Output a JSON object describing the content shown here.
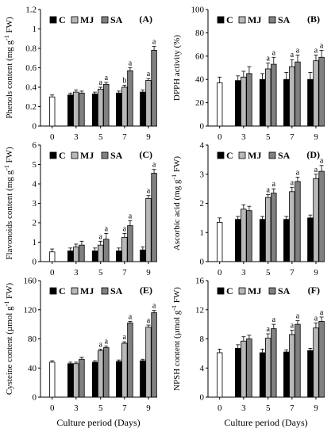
{
  "figure": {
    "xlabel": "Culture period (Days)"
  },
  "chart_data": [
    {
      "type": "bar",
      "panel": "(A)",
      "ylabel": "Phenols content (mg g⁻¹ FW)",
      "ylim": [
        0,
        1.2
      ],
      "yticks": [
        "0",
        "0.2",
        "0.4",
        "0.6",
        "0.8",
        "1",
        "1.2"
      ],
      "categories": [
        "0",
        "3",
        "5",
        "7",
        "9"
      ],
      "day0": {
        "value": 0.3,
        "err": 0.02
      },
      "series": [
        {
          "name": "C",
          "values": [
            null,
            0.32,
            0.33,
            0.34,
            0.35
          ],
          "errors": [
            null,
            0.02,
            0.02,
            0.02,
            0.02
          ],
          "labels": [
            "",
            "",
            "",
            "",
            ""
          ]
        },
        {
          "name": "MJ",
          "values": [
            null,
            0.35,
            0.38,
            0.4,
            0.47
          ],
          "errors": [
            null,
            0.02,
            0.02,
            0.02,
            0.02
          ],
          "labels": [
            "",
            "",
            "a",
            "b",
            "a"
          ]
        },
        {
          "name": "SA",
          "values": [
            null,
            0.34,
            0.43,
            0.57,
            0.78
          ],
          "errors": [
            null,
            0.02,
            0.02,
            0.03,
            0.04
          ],
          "labels": [
            "",
            "",
            "a",
            "a",
            "a"
          ]
        }
      ]
    },
    {
      "type": "bar",
      "panel": "(B)",
      "ylabel": "DPPH activity (%)",
      "ylim": [
        0,
        100
      ],
      "yticks": [
        "0",
        "20",
        "40",
        "60",
        "80",
        "100"
      ],
      "categories": [
        "0",
        "3",
        "5",
        "7",
        "9"
      ],
      "day0": {
        "value": 37,
        "err": 5
      },
      "series": [
        {
          "name": "C",
          "values": [
            null,
            39,
            40,
            40,
            40
          ],
          "errors": [
            null,
            4,
            5,
            6,
            6
          ],
          "labels": [
            "",
            "",
            "",
            "",
            ""
          ]
        },
        {
          "name": "MJ",
          "values": [
            null,
            42,
            49,
            51,
            56
          ],
          "errors": [
            null,
            5,
            5,
            6,
            5
          ],
          "labels": [
            "",
            "",
            "a",
            "a",
            "a"
          ]
        },
        {
          "name": "SA",
          "values": [
            null,
            45,
            53,
            55,
            59
          ],
          "errors": [
            null,
            6,
            6,
            6,
            6
          ],
          "labels": [
            "",
            "",
            "a",
            "a",
            "a"
          ]
        }
      ]
    },
    {
      "type": "bar",
      "panel": "(C)",
      "ylabel": "Flavonoids content (mg g⁻¹ FW)",
      "ylim": [
        0,
        6
      ],
      "yticks": [
        "0",
        "1",
        "2",
        "3",
        "4",
        "5",
        "6"
      ],
      "categories": [
        "0",
        "3",
        "5",
        "7",
        "9"
      ],
      "day0": {
        "value": 0.5,
        "err": 0.15
      },
      "series": [
        {
          "name": "C",
          "values": [
            null,
            0.55,
            0.55,
            0.55,
            0.6
          ],
          "errors": [
            null,
            0.15,
            0.15,
            0.15,
            0.15
          ],
          "labels": [
            "",
            "",
            "",
            "",
            ""
          ]
        },
        {
          "name": "MJ",
          "values": [
            null,
            0.75,
            0.85,
            1.25,
            3.25
          ],
          "errors": [
            null,
            0.15,
            0.2,
            0.2,
            0.15
          ],
          "labels": [
            "",
            "",
            "a",
            "a",
            "a"
          ]
        },
        {
          "name": "SA",
          "values": [
            null,
            0.85,
            1.15,
            1.85,
            4.55
          ],
          "errors": [
            null,
            0.2,
            0.3,
            0.25,
            0.2
          ],
          "labels": [
            "",
            "",
            "a",
            "a",
            "a"
          ]
        }
      ]
    },
    {
      "type": "bar",
      "panel": "(D)",
      "ylabel": "Ascorbic acid (mg g⁻¹ FW)",
      "ylim": [
        0,
        4
      ],
      "yticks": [
        "0",
        "1",
        "2",
        "3",
        "4"
      ],
      "categories": [
        "0",
        "3",
        "5",
        "7",
        "9"
      ],
      "day0": {
        "value": 1.35,
        "err": 0.15
      },
      "series": [
        {
          "name": "C",
          "values": [
            null,
            1.45,
            1.45,
            1.45,
            1.5
          ],
          "errors": [
            null,
            0.1,
            0.1,
            0.1,
            0.1
          ],
          "labels": [
            "",
            "",
            "",
            "",
            ""
          ]
        },
        {
          "name": "MJ",
          "values": [
            null,
            1.8,
            2.2,
            2.4,
            2.85
          ],
          "errors": [
            null,
            0.15,
            0.1,
            0.15,
            0.15
          ],
          "labels": [
            "",
            "",
            "a",
            "a",
            "a"
          ]
        },
        {
          "name": "SA",
          "values": [
            null,
            1.75,
            2.35,
            2.75,
            3.1
          ],
          "errors": [
            null,
            0.15,
            0.15,
            0.15,
            0.2
          ],
          "labels": [
            "",
            "",
            "a",
            "a",
            "a"
          ]
        }
      ]
    },
    {
      "type": "bar",
      "panel": "(E)",
      "ylabel": "Cysteine content (µmol g⁻¹ FW)",
      "ylim": [
        0,
        160
      ],
      "yticks": [
        "0",
        "40",
        "80",
        "120",
        "160"
      ],
      "categories": [
        "0",
        "3",
        "5",
        "7",
        "9"
      ],
      "day0": {
        "value": 48,
        "err": 2
      },
      "series": [
        {
          "name": "C",
          "values": [
            null,
            46,
            48,
            49,
            50
          ],
          "errors": [
            null,
            2,
            2,
            2,
            2
          ],
          "labels": [
            "",
            "",
            "",
            "",
            ""
          ]
        },
        {
          "name": "MJ",
          "values": [
            null,
            46,
            64,
            74,
            96
          ],
          "errors": [
            null,
            2,
            2,
            2,
            3
          ],
          "labels": [
            "",
            "",
            "a",
            "a",
            "a"
          ]
        },
        {
          "name": "SA",
          "values": [
            null,
            52,
            68,
            102,
            116
          ],
          "errors": [
            null,
            3,
            2,
            2,
            3
          ],
          "labels": [
            "",
            "",
            "a",
            "a",
            "a"
          ]
        }
      ]
    },
    {
      "type": "bar",
      "panel": "(F)",
      "ylabel": "NPSH content (µmol g⁻¹ FW)",
      "ylim": [
        0,
        16
      ],
      "yticks": [
        "0",
        "4",
        "8",
        "12",
        "16"
      ],
      "categories": [
        "0",
        "3",
        "5",
        "7",
        "9"
      ],
      "day0": {
        "value": 6.1,
        "err": 0.5
      },
      "series": [
        {
          "name": "C",
          "values": [
            null,
            6.7,
            6.1,
            6.2,
            6.4
          ],
          "errors": [
            null,
            0.5,
            0.5,
            0.3,
            0.3
          ],
          "labels": [
            "",
            "",
            "",
            "",
            ""
          ]
        },
        {
          "name": "MJ",
          "values": [
            null,
            7.7,
            8.1,
            8.6,
            9.5
          ],
          "errors": [
            null,
            0.6,
            0.6,
            0.6,
            0.7
          ],
          "labels": [
            "",
            "",
            "a",
            "a",
            "a"
          ]
        },
        {
          "name": "SA",
          "values": [
            null,
            8.0,
            9.4,
            10.0,
            10.4
          ],
          "errors": [
            null,
            0.5,
            0.6,
            0.5,
            0.6
          ],
          "labels": [
            "",
            "",
            "a",
            "a",
            "a"
          ]
        }
      ]
    }
  ],
  "colors": {
    "C": "#000000",
    "MJ": "#b8b8b8",
    "SA": "#808080",
    "day0": "#ffffff"
  }
}
